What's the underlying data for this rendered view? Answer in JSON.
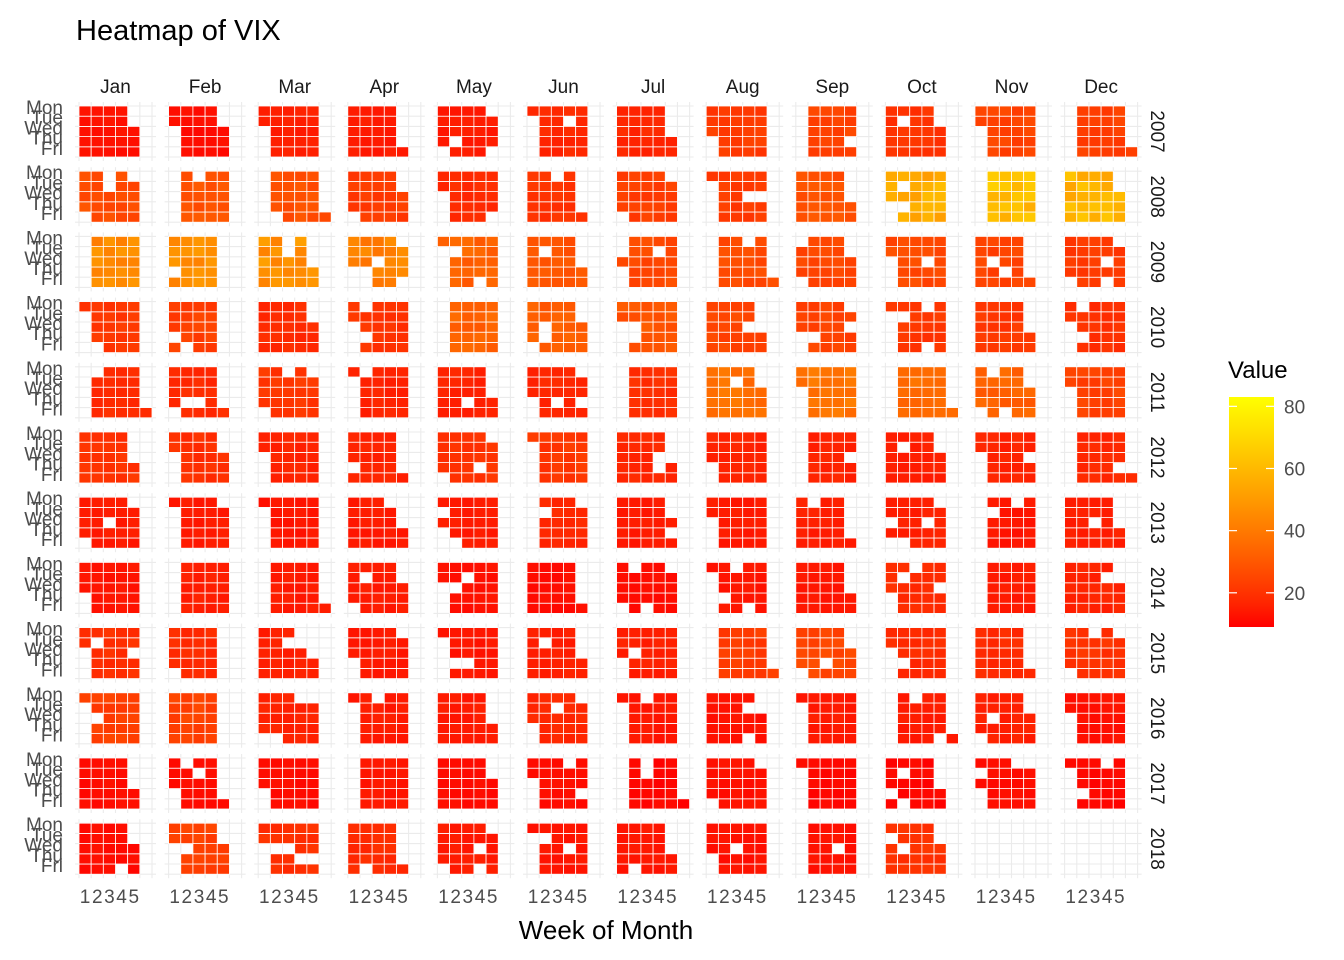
{
  "chart_data": {
    "type": "heatmap",
    "title": "Heatmap of VIX",
    "xlabel": "Week of Month",
    "ylabel": "",
    "month_labels": [
      "Jan",
      "Feb",
      "Mar",
      "Apr",
      "May",
      "Jun",
      "Jul",
      "Aug",
      "Sep",
      "Oct",
      "Nov",
      "Dec"
    ],
    "year_labels": [
      "2007",
      "2008",
      "2009",
      "2010",
      "2011",
      "2012",
      "2013",
      "2014",
      "2015",
      "2016",
      "2017",
      "2018"
    ],
    "weekday_labels": [
      "Mon",
      "Tue",
      "Wed",
      "Thu",
      "Fri"
    ],
    "week_tick_labels": [
      "1",
      "2",
      "3",
      "4",
      "5"
    ],
    "legend": {
      "title": "Value",
      "ticks": [
        20,
        40,
        60,
        80
      ],
      "range": [
        9,
        83
      ],
      "placement": "right",
      "colors": {
        "low": "#ff0000",
        "high": "#ffff00"
      }
    },
    "grid": true,
    "panel_grid_color": "#ebebeb",
    "tile_border_color": "#ffffff",
    "data_end": "2018-10",
    "monthly_level": [
      [
        12,
        11,
        15,
        14,
        14,
        17,
        17,
        22,
        24,
        20,
        24,
        23
      ],
      [
        27,
        28,
        28,
        22,
        18,
        20,
        23,
        22,
        28,
        56,
        62,
        58
      ],
      [
        45,
        46,
        47,
        42,
        33,
        29,
        26,
        26,
        25,
        26,
        24,
        22
      ],
      [
        21,
        23,
        18,
        20,
        33,
        32,
        29,
        25,
        24,
        21,
        21,
        19
      ],
      [
        18,
        18,
        21,
        16,
        16,
        17,
        19,
        37,
        38,
        35,
        33,
        24
      ],
      [
        20,
        19,
        16,
        16,
        20,
        21,
        17,
        16,
        16,
        15,
        16,
        17
      ],
      [
        14,
        14,
        13,
        14,
        14,
        17,
        14,
        14,
        15,
        15,
        13,
        15
      ],
      [
        13,
        15,
        14,
        14,
        12,
        11,
        11,
        13,
        13,
        18,
        14,
        16
      ],
      [
        19,
        18,
        15,
        14,
        13,
        15,
        15,
        22,
        25,
        18,
        18,
        20
      ],
      [
        23,
        24,
        16,
        14,
        14,
        17,
        13,
        12,
        14,
        14,
        15,
        12
      ],
      [
        11,
        11,
        11,
        13,
        11,
        11,
        10,
        12,
        10,
        10,
        11,
        10
      ],
      [
        11,
        23,
        19,
        18,
        14,
        13,
        13,
        12,
        12,
        20,
        null,
        null
      ]
    ]
  }
}
